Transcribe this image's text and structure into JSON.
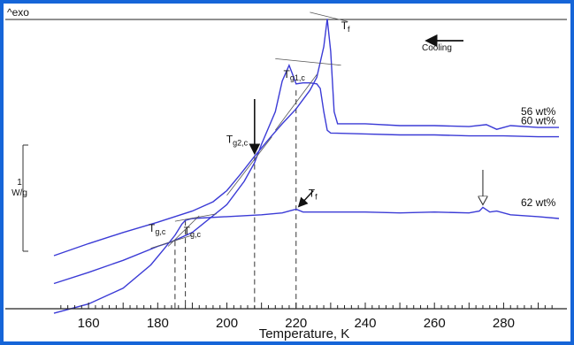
{
  "chart_data": {
    "type": "line",
    "exo_label": "^exo",
    "xlabel": "Temperature, K",
    "xlim": [
      150,
      296
    ],
    "x_ticks": [
      160,
      180,
      200,
      220,
      240,
      260,
      280
    ],
    "scale_bar_label": [
      "1",
      "W/g"
    ],
    "cooling_label": "Cooling",
    "accent_color": "#1565d8",
    "curve_color": "#3b3bd6",
    "series": [
      {
        "name": "56 wt%",
        "x": [
          150,
          160,
          170,
          180,
          190,
          196,
          200,
          204,
          208,
          212,
          216,
          220,
          224,
          226,
          228,
          229,
          230,
          231,
          232,
          240,
          250,
          260,
          270,
          275,
          278,
          282,
          290,
          296
        ],
        "y": [
          -1.0,
          -0.87,
          -0.75,
          -0.64,
          -0.52,
          -0.42,
          -0.3,
          -0.12,
          0.07,
          0.25,
          0.42,
          0.58,
          0.78,
          0.92,
          1.25,
          1.55,
          1.2,
          0.55,
          0.42,
          0.42,
          0.4,
          0.4,
          0.39,
          0.41,
          0.36,
          0.4,
          0.38,
          0.38
        ]
      },
      {
        "name": "60 wt%",
        "x": [
          150,
          160,
          170,
          180,
          184,
          190,
          200,
          205,
          208,
          210,
          214,
          216,
          218,
          219,
          220,
          222,
          224,
          226,
          227,
          228,
          229,
          230,
          240,
          250,
          260,
          270,
          280,
          290,
          296
        ],
        "y": [
          -1.3,
          -1.18,
          -1.05,
          -0.9,
          -0.85,
          -0.75,
          -0.45,
          -0.2,
          0.0,
          0.2,
          0.55,
          0.88,
          1.05,
          0.95,
          0.85,
          0.86,
          0.86,
          0.85,
          0.8,
          0.55,
          0.35,
          0.32,
          0.31,
          0.3,
          0.3,
          0.29,
          0.29,
          0.28,
          0.28
        ]
      },
      {
        "name": "62 wt%",
        "x": [
          150,
          160,
          170,
          178,
          182,
          185,
          187,
          188,
          190,
          200,
          210,
          216,
          218,
          220,
          222,
          230,
          240,
          250,
          260,
          270,
          273,
          274,
          276,
          278,
          282,
          290,
          296
        ],
        "y": [
          -1.62,
          -1.52,
          -1.35,
          -1.1,
          -0.92,
          -0.78,
          -0.66,
          -0.62,
          -0.6,
          -0.58,
          -0.56,
          -0.54,
          -0.52,
          -0.5,
          -0.53,
          -0.53,
          -0.53,
          -0.54,
          -0.53,
          -0.54,
          -0.52,
          -0.48,
          -0.53,
          -0.52,
          -0.56,
          -0.58,
          -0.6
        ]
      }
    ],
    "annotations": [
      {
        "main": "T",
        "sub": "g1,c",
        "x": 223,
        "y": 0.78
      },
      {
        "main": "T",
        "sub": "g2,c",
        "x": 208,
        "y": 0.08
      },
      {
        "main": "T",
        "sub": "g,c",
        "x": 184,
        "y": -0.84
      },
      {
        "main": "T",
        "sub": "g,c",
        "x": 187.5,
        "y": -0.62
      },
      {
        "main": "T",
        "sub": "f",
        "x": 232,
        "y": 1.4
      },
      {
        "main": "T",
        "sub": "f",
        "x": 220,
        "y": -0.5
      }
    ],
    "dashed_lines_x": [
      185,
      188,
      208,
      220
    ]
  }
}
